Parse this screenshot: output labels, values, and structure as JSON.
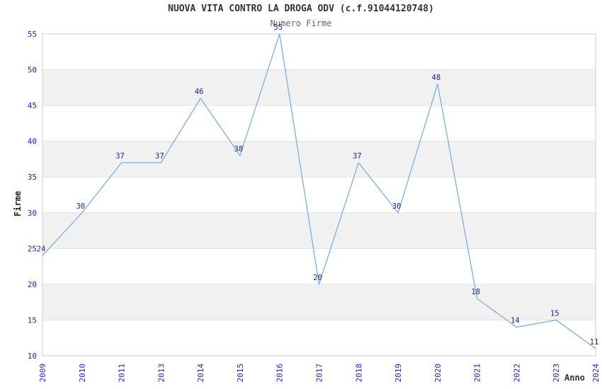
{
  "chart_data": {
    "type": "line",
    "title": "NUOVA VITA CONTRO LA DROGA ODV (c.f.91044120748)",
    "subtitle": "Numero Firme",
    "xlabel": "Anno",
    "ylabel": "Firme",
    "categories": [
      "2009",
      "2010",
      "2011",
      "2013",
      "2014",
      "2015",
      "2016",
      "2017",
      "2018",
      "2019",
      "2020",
      "2021",
      "2022",
      "2023",
      "2024"
    ],
    "series": [
      {
        "name": "Numero Firme",
        "values": [
          24,
          30,
          37,
          37,
          46,
          38,
          55,
          20,
          37,
          30,
          48,
          18,
          14,
          15,
          11
        ]
      }
    ],
    "ylim": [
      10,
      55
    ],
    "ytick_step": 5,
    "yticks": [
      10,
      15,
      20,
      25,
      30,
      35,
      40,
      45,
      50,
      55
    ],
    "grid": "horizontal-bands-alternating",
    "band_ranges": [
      [
        15,
        20
      ],
      [
        25,
        30
      ],
      [
        35,
        40
      ],
      [
        45,
        50
      ]
    ],
    "legend_position": "none",
    "markers": "none",
    "data_labels_visible": true,
    "x_tick_rotation_degrees": 90,
    "colors": {
      "line": "#7DAEE0",
      "data_label": "#1F1F8F",
      "tick_label": "#2222CC",
      "title": "#333333",
      "subtitle": "#666666",
      "axis_label": "#333333",
      "band_fill": "#F1F1F1",
      "band_edge": "#E3E3E3",
      "plot_border": "#CCCCCC",
      "background": "#FFFFFF"
    }
  }
}
